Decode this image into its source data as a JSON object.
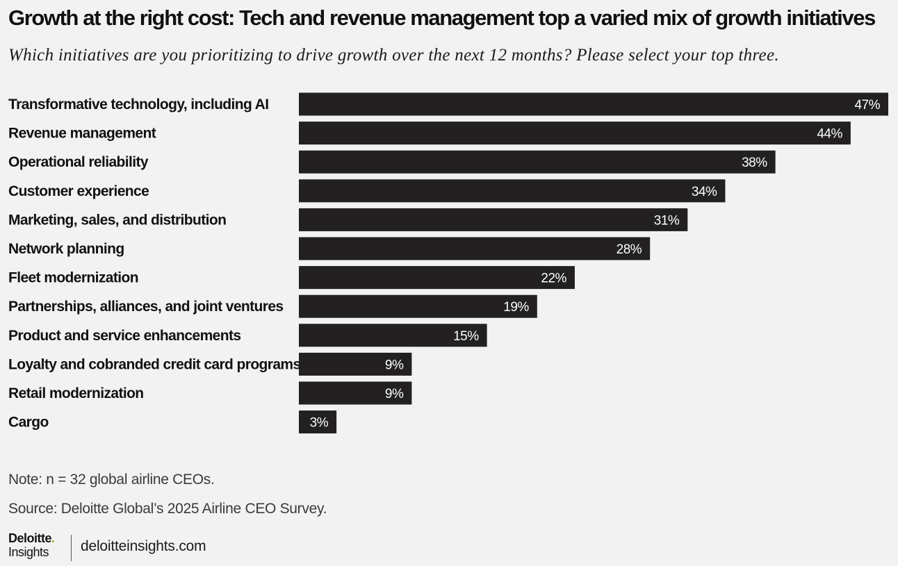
{
  "header": {
    "title": "Growth at the right cost: Tech and revenue management top a varied mix of growth initiatives",
    "subtitle": "Which initiatives are you prioritizing to drive growth over the next 12 months? Please select your top three."
  },
  "chart_data": {
    "type": "bar",
    "orientation": "horizontal",
    "categories": [
      "Transformative technology, including AI",
      "Revenue management",
      "Operational reliability",
      "Customer experience",
      "Marketing, sales, and distribution",
      "Network planning",
      "Fleet modernization",
      "Partnerships, alliances, and joint ventures",
      "Product and service enhancements",
      "Loyalty and cobranded credit card programs",
      "Retail modernization",
      "Cargo"
    ],
    "values": [
      47,
      44,
      38,
      34,
      31,
      28,
      22,
      19,
      15,
      9,
      9,
      3
    ],
    "value_labels": [
      "47%",
      "44%",
      "38%",
      "34%",
      "31%",
      "28%",
      "22%",
      "19%",
      "15%",
      "9%",
      "9%",
      "3%"
    ],
    "xlim": [
      0,
      47
    ],
    "grid": false,
    "legend": "none",
    "bar_color": "#232021",
    "label_color": "#ffffff"
  },
  "footer": {
    "note": "Note: n = 32 global airline CEOs.",
    "source": "Source: Deloitte Global’s 2025 Airline CEO Survey.",
    "logo_word": "Deloitte",
    "logo_dot": ".",
    "logo_sub": "Insights",
    "website": "deloitteinsights.com",
    "logo_dot_color": "#86bc25"
  }
}
